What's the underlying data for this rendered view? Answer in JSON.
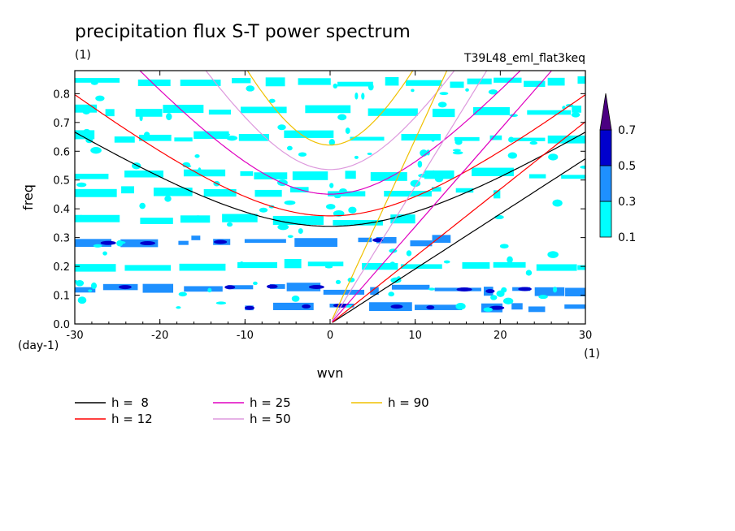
{
  "chart_data": {
    "type": "heatmap",
    "title": "precipitation flux S-T power spectrum",
    "units": "(1)",
    "run_label": "T39L48_eml_flat3keq",
    "xlabel": "wvn",
    "x_unit": "(1)",
    "ylabel": "freq",
    "y_unit": "(day-1)",
    "xlim": [
      -30,
      30
    ],
    "ylim": [
      0,
      0.88
    ],
    "xticks": [
      -30,
      -20,
      -10,
      0,
      10,
      20,
      30
    ],
    "xtick_labels": [
      "-30",
      "-20",
      "-10",
      "0",
      "10",
      "20",
      "30"
    ],
    "yticks": [
      0,
      0.1,
      0.2,
      0.3,
      0.4,
      0.5,
      0.6,
      0.7,
      0.8
    ],
    "ytick_labels": [
      "0.0",
      "0.1",
      "0.2",
      "0.3",
      "0.4",
      "0.5",
      "0.6",
      "0.7",
      "0.8"
    ],
    "colorbar": {
      "levels": [
        0.1,
        0.3,
        0.5,
        0.7
      ],
      "level_labels": [
        "0.1",
        "0.3",
        "0.5",
        "0.7"
      ],
      "colors": [
        "#00ffff",
        "#1e90ff",
        "#0000cd",
        "#4b0082"
      ],
      "extend": "max"
    },
    "field_bands": [
      {
        "freq": 0.06,
        "level": 0.3,
        "x": [
          -10,
          30
        ]
      },
      {
        "freq": 0.12,
        "level": 0.3,
        "x": [
          -30,
          30
        ]
      },
      {
        "freq": 0.2,
        "level": 0.1,
        "x": [
          -30,
          30
        ]
      },
      {
        "freq": 0.29,
        "level": 0.3,
        "x": [
          -30,
          15
        ]
      },
      {
        "freq": 0.36,
        "level": 0.1,
        "x": [
          -30,
          10
        ]
      },
      {
        "freq": 0.46,
        "level": 0.1,
        "x": [
          -30,
          20
        ]
      },
      {
        "freq": 0.52,
        "level": 0.1,
        "x": [
          -30,
          30
        ]
      },
      {
        "freq": 0.65,
        "level": 0.1,
        "x": [
          -30,
          30
        ]
      },
      {
        "freq": 0.74,
        "level": 0.1,
        "x": [
          -30,
          30
        ]
      },
      {
        "freq": 0.84,
        "level": 0.1,
        "x": [
          -30,
          30
        ]
      }
    ],
    "series": [
      {
        "name": "h =  8",
        "h": 8,
        "color": "#000000"
      },
      {
        "name": "h = 12",
        "h": 12,
        "color": "#ff0000"
      },
      {
        "name": "h = 25",
        "h": 25,
        "color": "#e000c0"
      },
      {
        "name": "h = 50",
        "h": 50,
        "color": "#dd99dd"
      },
      {
        "name": "h = 90",
        "h": 90,
        "color": "#f0c000"
      }
    ],
    "legend_position": "bottom-left"
  }
}
